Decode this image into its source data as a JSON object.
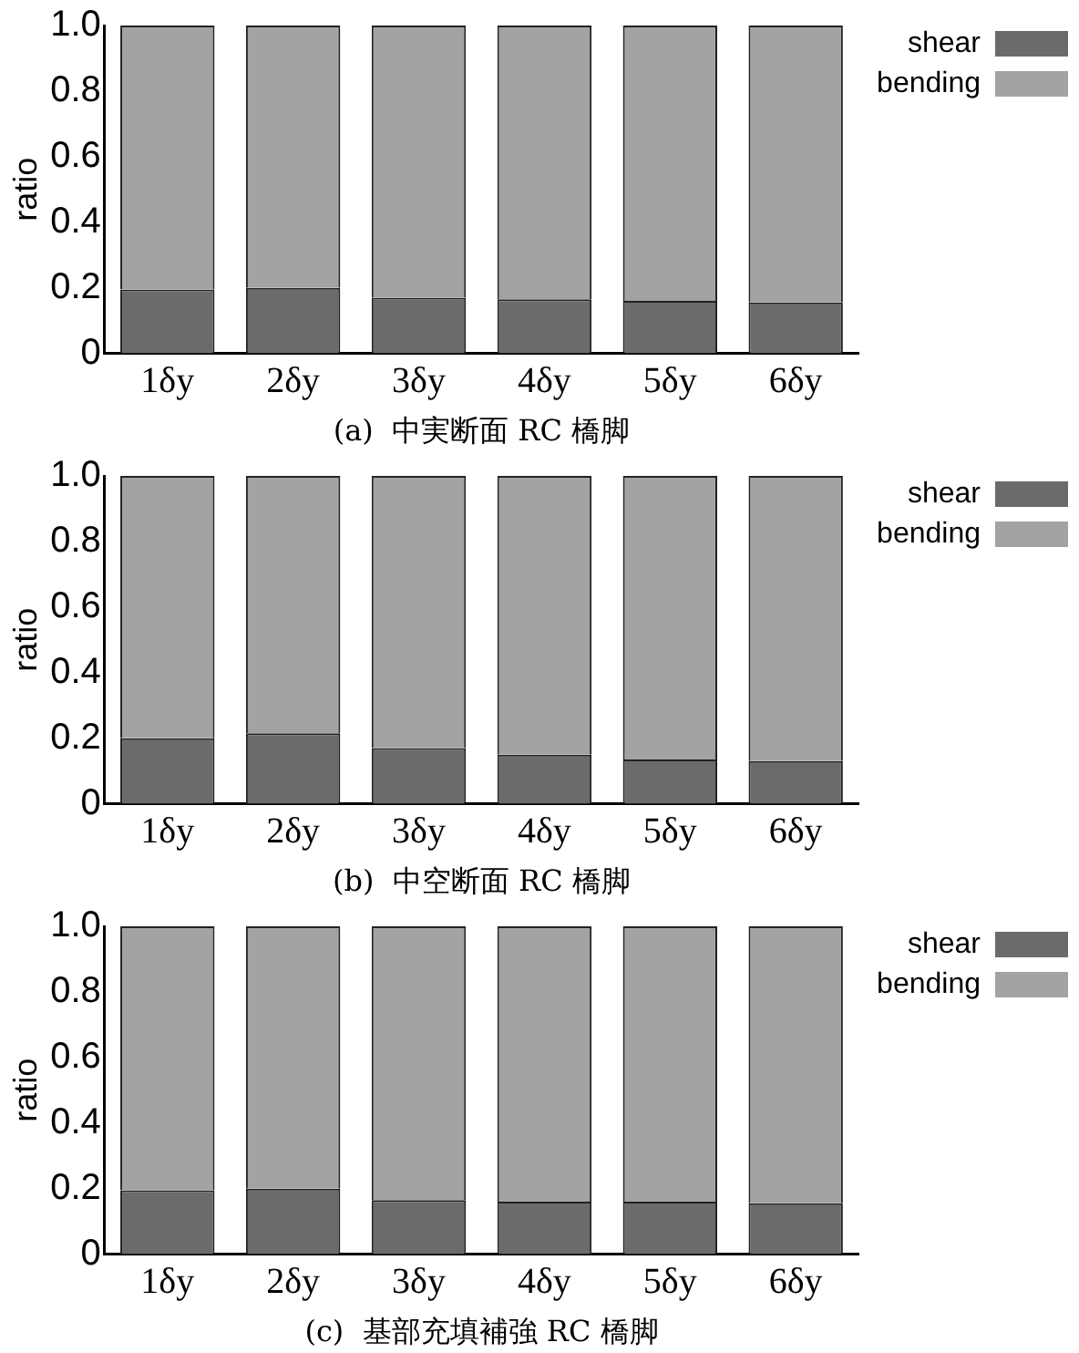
{
  "chart_data": [
    {
      "type": "bar",
      "stacked": true,
      "xlabel": "(a)  中実断面 RC 橋脚",
      "ylabel": "ratio",
      "categories": [
        "1δy",
        "2δy",
        "3δy",
        "4δy",
        "5δy",
        "6δy"
      ],
      "series": [
        {
          "name": "shear",
          "color": "#6b6b6b",
          "values": [
            0.195,
            0.2,
            0.17,
            0.165,
            0.16,
            0.155
          ]
        },
        {
          "name": "bending",
          "color": "#a3a3a3",
          "values": [
            0.805,
            0.8,
            0.83,
            0.835,
            0.84,
            0.845
          ]
        }
      ],
      "ylim": [
        0,
        1
      ],
      "yticks": [
        {
          "value": 0,
          "label": "0"
        },
        {
          "value": 0.2,
          "label": "0.2"
        },
        {
          "value": 0.4,
          "label": "0.4"
        },
        {
          "value": 0.6,
          "label": "0.6"
        },
        {
          "value": 0.8,
          "label": "0.8"
        },
        {
          "value": 1,
          "label": "1.0"
        }
      ],
      "legend": "top right",
      "grid": false
    },
    {
      "type": "bar",
      "stacked": true,
      "xlabel": "(b)  中空断面 RC 橋脚",
      "ylabel": "ratio",
      "categories": [
        "1δy",
        "2δy",
        "3δy",
        "4δy",
        "5δy",
        "6δy"
      ],
      "series": [
        {
          "name": "shear",
          "color": "#6b6b6b",
          "values": [
            0.2,
            0.215,
            0.17,
            0.15,
            0.135,
            0.13
          ]
        },
        {
          "name": "bending",
          "color": "#a3a3a3",
          "values": [
            0.8,
            0.785,
            0.83,
            0.85,
            0.865,
            0.87
          ]
        }
      ],
      "ylim": [
        0,
        1
      ],
      "yticks": [
        {
          "value": 0,
          "label": "0"
        },
        {
          "value": 0.2,
          "label": "0.2"
        },
        {
          "value": 0.4,
          "label": "0.4"
        },
        {
          "value": 0.6,
          "label": "0.6"
        },
        {
          "value": 0.8,
          "label": "0.8"
        },
        {
          "value": 1,
          "label": "1.0"
        }
      ],
      "legend": "top right",
      "grid": false
    },
    {
      "type": "bar",
      "stacked": true,
      "xlabel": "(c)  基部充填補強 RC 橋脚",
      "ylabel": "ratio",
      "categories": [
        "1δy",
        "2δy",
        "3δy",
        "4δy",
        "5δy",
        "6δy"
      ],
      "series": [
        {
          "name": "shear",
          "color": "#6b6b6b",
          "values": [
            0.195,
            0.2,
            0.165,
            0.16,
            0.16,
            0.155
          ]
        },
        {
          "name": "bending",
          "color": "#a3a3a3",
          "values": [
            0.805,
            0.8,
            0.835,
            0.84,
            0.84,
            0.845
          ]
        }
      ],
      "ylim": [
        0,
        1
      ],
      "yticks": [
        {
          "value": 0,
          "label": "0"
        },
        {
          "value": 0.2,
          "label": "0.2"
        },
        {
          "value": 0.4,
          "label": "0.4"
        },
        {
          "value": 0.6,
          "label": "0.6"
        },
        {
          "value": 0.8,
          "label": "0.8"
        },
        {
          "value": 1,
          "label": "1.0"
        }
      ],
      "legend": "top right",
      "grid": false
    }
  ]
}
